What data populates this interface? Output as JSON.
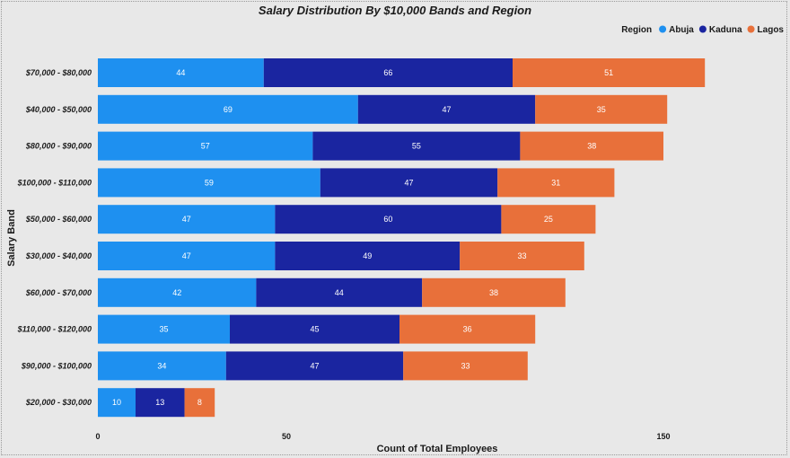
{
  "chart_data": {
    "type": "bar",
    "orientation": "horizontal",
    "stacked": true,
    "title": "Salary Distribution By $10,000 Bands and Region",
    "xlabel": "Count of Total Employees",
    "ylabel": "Salary Band",
    "xlim": [
      0,
      175
    ],
    "xticks": [
      0,
      50,
      150
    ],
    "legend_title": "Region",
    "legend_position": "top-right",
    "grid": false,
    "categories": [
      "$70,000 - $80,000",
      "$40,000 - $50,000",
      "$80,000 - $90,000",
      "$100,000 - $110,000",
      "$50,000 - $60,000",
      "$30,000 - $40,000",
      "$60,000 - $70,000",
      "$110,000 - $120,000",
      "$90,000 - $100,000",
      "$20,000 - $30,000"
    ],
    "series": [
      {
        "name": "Abuja",
        "color": "#1e90f0",
        "values": [
          44,
          69,
          57,
          59,
          47,
          47,
          42,
          35,
          34,
          10
        ]
      },
      {
        "name": "Kaduna",
        "color": "#1a25a0",
        "values": [
          66,
          47,
          55,
          47,
          60,
          49,
          44,
          45,
          47,
          13
        ]
      },
      {
        "name": "Lagos",
        "color": "#e8703a",
        "values": [
          51,
          35,
          38,
          31,
          25,
          33,
          38,
          36,
          33,
          8
        ]
      }
    ]
  }
}
